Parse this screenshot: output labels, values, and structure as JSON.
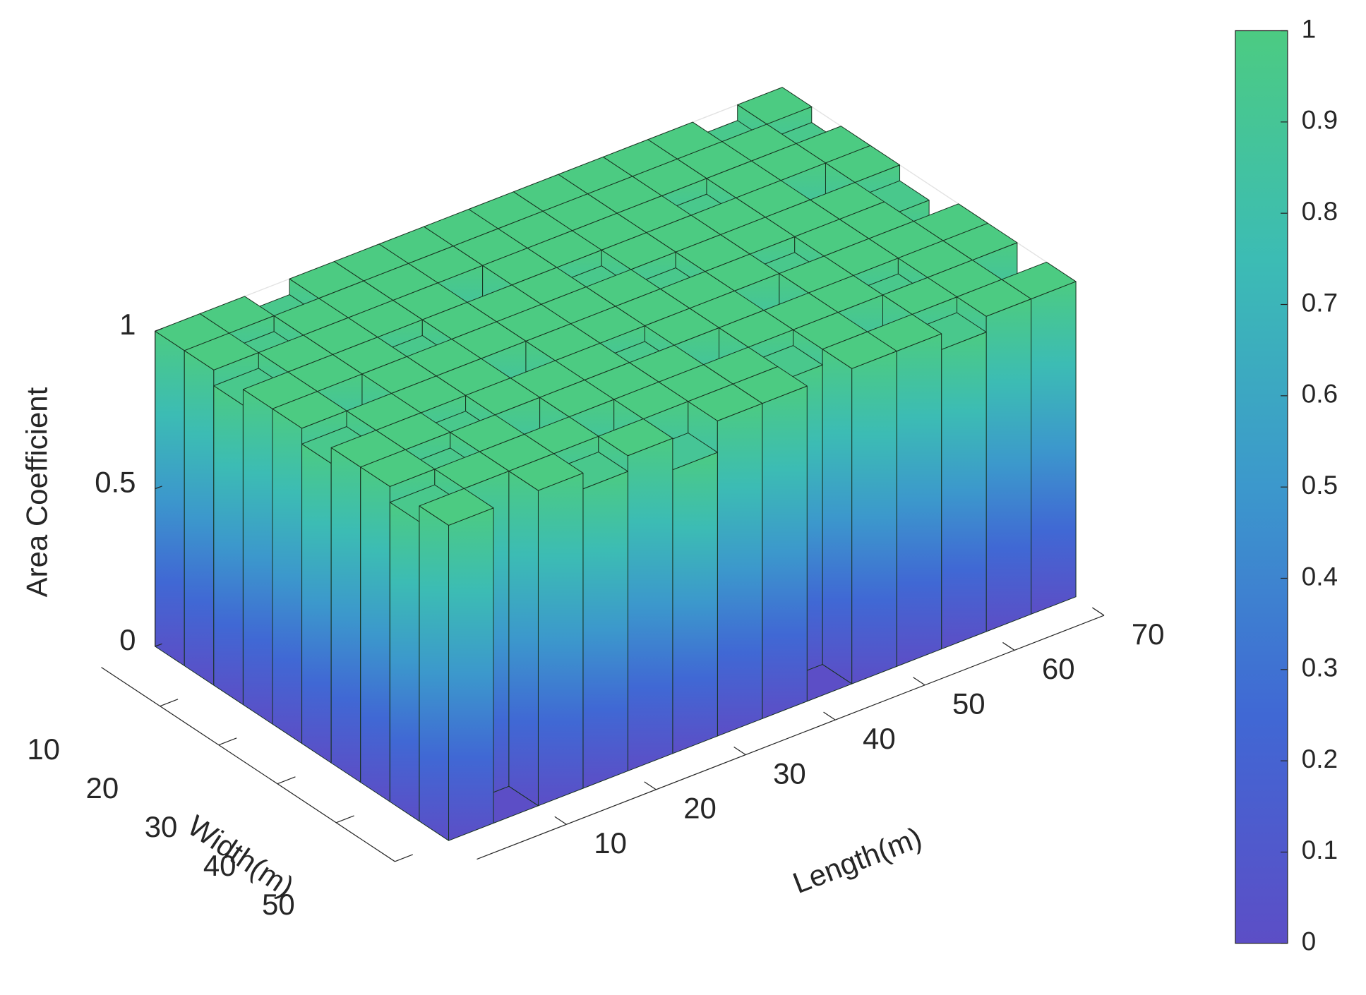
{
  "chart_data": {
    "type": "bar3",
    "xlabel": "Width(m)",
    "ylabel": "Length(m)",
    "zlabel": "Area Coefficient",
    "xlim": [
      0,
      50
    ],
    "xticks": [
      10,
      20,
      30,
      40,
      50
    ],
    "ylim": [
      0,
      70
    ],
    "yticks": [
      10,
      20,
      30,
      40,
      50,
      60,
      70
    ],
    "zlim": [
      0,
      1
    ],
    "zticks": [
      0,
      0.5,
      1
    ],
    "grid": true,
    "colormap": [
      "#5c4ec6",
      "#4068d4",
      "#3c98cc",
      "#3cbcb4",
      "#4ccb82"
    ],
    "clim": [
      0,
      1
    ],
    "cticks": [
      0,
      0.1,
      0.2,
      0.3,
      0.4,
      0.5,
      0.6,
      0.7,
      0.8,
      0.9,
      1
    ],
    "values": [
      [
        1,
        1,
        0.95,
        1,
        1,
        1,
        1,
        1,
        1,
        1,
        1,
        1,
        0.95,
        1
      ],
      [
        1,
        0.95,
        1,
        1,
        1,
        1,
        1,
        1,
        1,
        1,
        1,
        1,
        1,
        0.95
      ],
      [
        0.95,
        1,
        1,
        1,
        1,
        0.9,
        1,
        1,
        1,
        1,
        0.95,
        1,
        1,
        1
      ],
      [
        1,
        1,
        1,
        0.95,
        1,
        1,
        1,
        0.95,
        1,
        1,
        1,
        1,
        0.9,
        1
      ],
      [
        1,
        0.9,
        1,
        1,
        1,
        1,
        1,
        1,
        0.95,
        1,
        1,
        1,
        1,
        0.95
      ],
      [
        0.95,
        1,
        1,
        1,
        0.9,
        1,
        1,
        1,
        1,
        1,
        0.95,
        1,
        1,
        0
      ],
      [
        1,
        1,
        0.95,
        1,
        1,
        1,
        0.95,
        1,
        1,
        0,
        1,
        1,
        1,
        1
      ],
      [
        1,
        0.95,
        1,
        0.9,
        1,
        1,
        1,
        0,
        1,
        1,
        1,
        0.95,
        1,
        1
      ],
      [
        0.95,
        1,
        1,
        1,
        0,
        1,
        1,
        1,
        0.95,
        1,
        0,
        1,
        1,
        0.9
      ],
      [
        1,
        0,
        1,
        0.95,
        1,
        0.9,
        1,
        1,
        0,
        1,
        1,
        0.95,
        1,
        1
      ]
    ]
  }
}
